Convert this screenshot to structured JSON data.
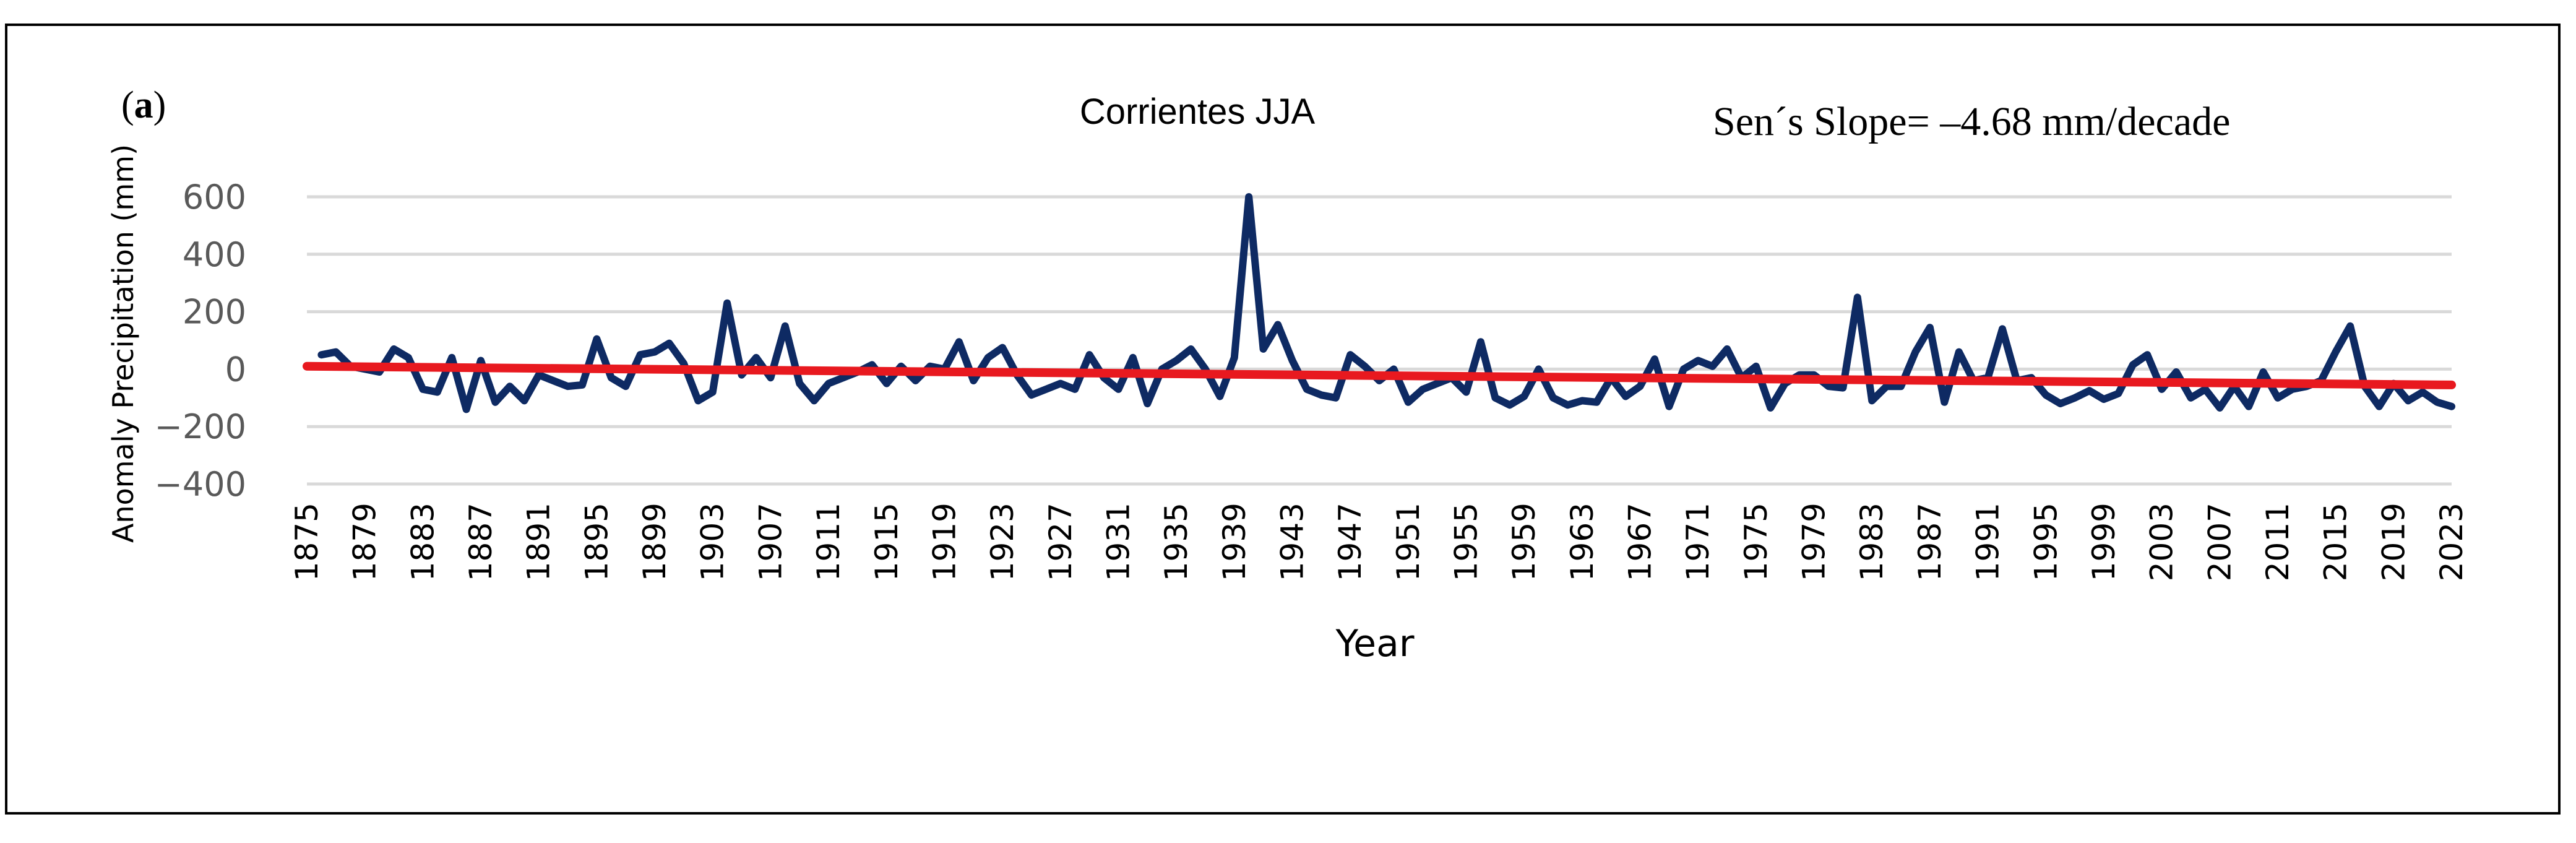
{
  "chart_data": {
    "type": "line",
    "panel_label": "a",
    "title": "Corrientes JJA",
    "annotation": "Sen´s Slope= –4.68 mm/decade",
    "xlabel": "Year",
    "ylabel": "Anomaly Precipitation (mm)",
    "ylim": [
      -400,
      600
    ],
    "yticks": [
      600,
      400,
      200,
      0,
      -200,
      -400
    ],
    "xlim": [
      1875,
      2023
    ],
    "xticks": [
      1875,
      1879,
      1883,
      1887,
      1891,
      1895,
      1899,
      1903,
      1907,
      1911,
      1915,
      1919,
      1923,
      1927,
      1931,
      1935,
      1939,
      1943,
      1947,
      1951,
      1955,
      1959,
      1963,
      1967,
      1971,
      1975,
      1979,
      1983,
      1987,
      1991,
      1995,
      1999,
      2003,
      2007,
      2011,
      2015,
      2019,
      2023
    ],
    "grid": true,
    "colors": {
      "series": "#0e2a63",
      "trend": "#e8191f",
      "grid": "#d9d9d9"
    },
    "series": [
      {
        "name": "Anomaly",
        "x": [
          1876,
          1877,
          1878,
          1879,
          1880,
          1881,
          1882,
          1883,
          1884,
          1885,
          1886,
          1887,
          1888,
          1889,
          1890,
          1891,
          1892,
          1893,
          1894,
          1895,
          1896,
          1897,
          1898,
          1899,
          1900,
          1901,
          1902,
          1903,
          1904,
          1905,
          1906,
          1907,
          1908,
          1909,
          1910,
          1911,
          1912,
          1913,
          1914,
          1915,
          1916,
          1917,
          1918,
          1919,
          1920,
          1921,
          1922,
          1923,
          1924,
          1925,
          1926,
          1927,
          1928,
          1929,
          1930,
          1931,
          1932,
          1933,
          1934,
          1935,
          1936,
          1937,
          1938,
          1939,
          1940,
          1941,
          1942,
          1943,
          1944,
          1945,
          1946,
          1947,
          1948,
          1949,
          1950,
          1951,
          1952,
          1953,
          1954,
          1955,
          1956,
          1957,
          1958,
          1959,
          1960,
          1961,
          1962,
          1963,
          1964,
          1965,
          1966,
          1967,
          1968,
          1969,
          1970,
          1971,
          1972,
          1973,
          1974,
          1975,
          1976,
          1977,
          1978,
          1979,
          1980,
          1981,
          1982,
          1983,
          1984,
          1985,
          1986,
          1987,
          1988,
          1989,
          1990,
          1991,
          1992,
          1993,
          1994,
          1995,
          1996,
          1997,
          1998,
          1999,
          2000,
          2001,
          2002,
          2003,
          2004,
          2005,
          2006,
          2007,
          2008,
          2009,
          2010,
          2011,
          2012,
          2013,
          2014,
          2015,
          2016,
          2017,
          2018,
          2019,
          2020,
          2021,
          2022,
          2023
        ],
        "values": [
          50,
          60,
          10,
          0,
          -10,
          70,
          40,
          -70,
          -80,
          40,
          -140,
          30,
          -115,
          -60,
          -110,
          -20,
          -40,
          -60,
          -55,
          105,
          -30,
          -60,
          50,
          60,
          90,
          20,
          -110,
          -80,
          230,
          -20,
          40,
          -30,
          150,
          -50,
          -110,
          -50,
          -30,
          -10,
          15,
          -50,
          10,
          -40,
          10,
          0,
          95,
          -40,
          40,
          75,
          -20,
          -90,
          -70,
          -50,
          -70,
          50,
          -30,
          -70,
          40,
          -120,
          0,
          30,
          70,
          0,
          -95,
          40,
          600,
          70,
          155,
          30,
          -70,
          -90,
          -100,
          50,
          10,
          -40,
          0,
          -115,
          -70,
          -50,
          -30,
          -80,
          95,
          -100,
          -125,
          -95,
          0,
          -100,
          -125,
          -110,
          -115,
          -30,
          -95,
          -60,
          35,
          -130,
          0,
          30,
          10,
          70,
          -30,
          10,
          -135,
          -50,
          -20,
          -20,
          -60,
          -65,
          250,
          -110,
          -60,
          -60,
          60,
          145,
          -115,
          60,
          -40,
          -30,
          140,
          -40,
          -30,
          -90,
          -120,
          -100,
          -75,
          -105,
          -85,
          15,
          50,
          -70,
          -10,
          -100,
          -70,
          -135,
          -60,
          -130,
          -10,
          -100,
          -70,
          -60,
          -40,
          60,
          150,
          -60,
          -130,
          -50,
          -110,
          -80,
          -115,
          -130
        ]
      },
      {
        "name": "Sen's slope trend",
        "x": [
          1875,
          2023
        ],
        "values": [
          10,
          -55
        ]
      }
    ]
  }
}
